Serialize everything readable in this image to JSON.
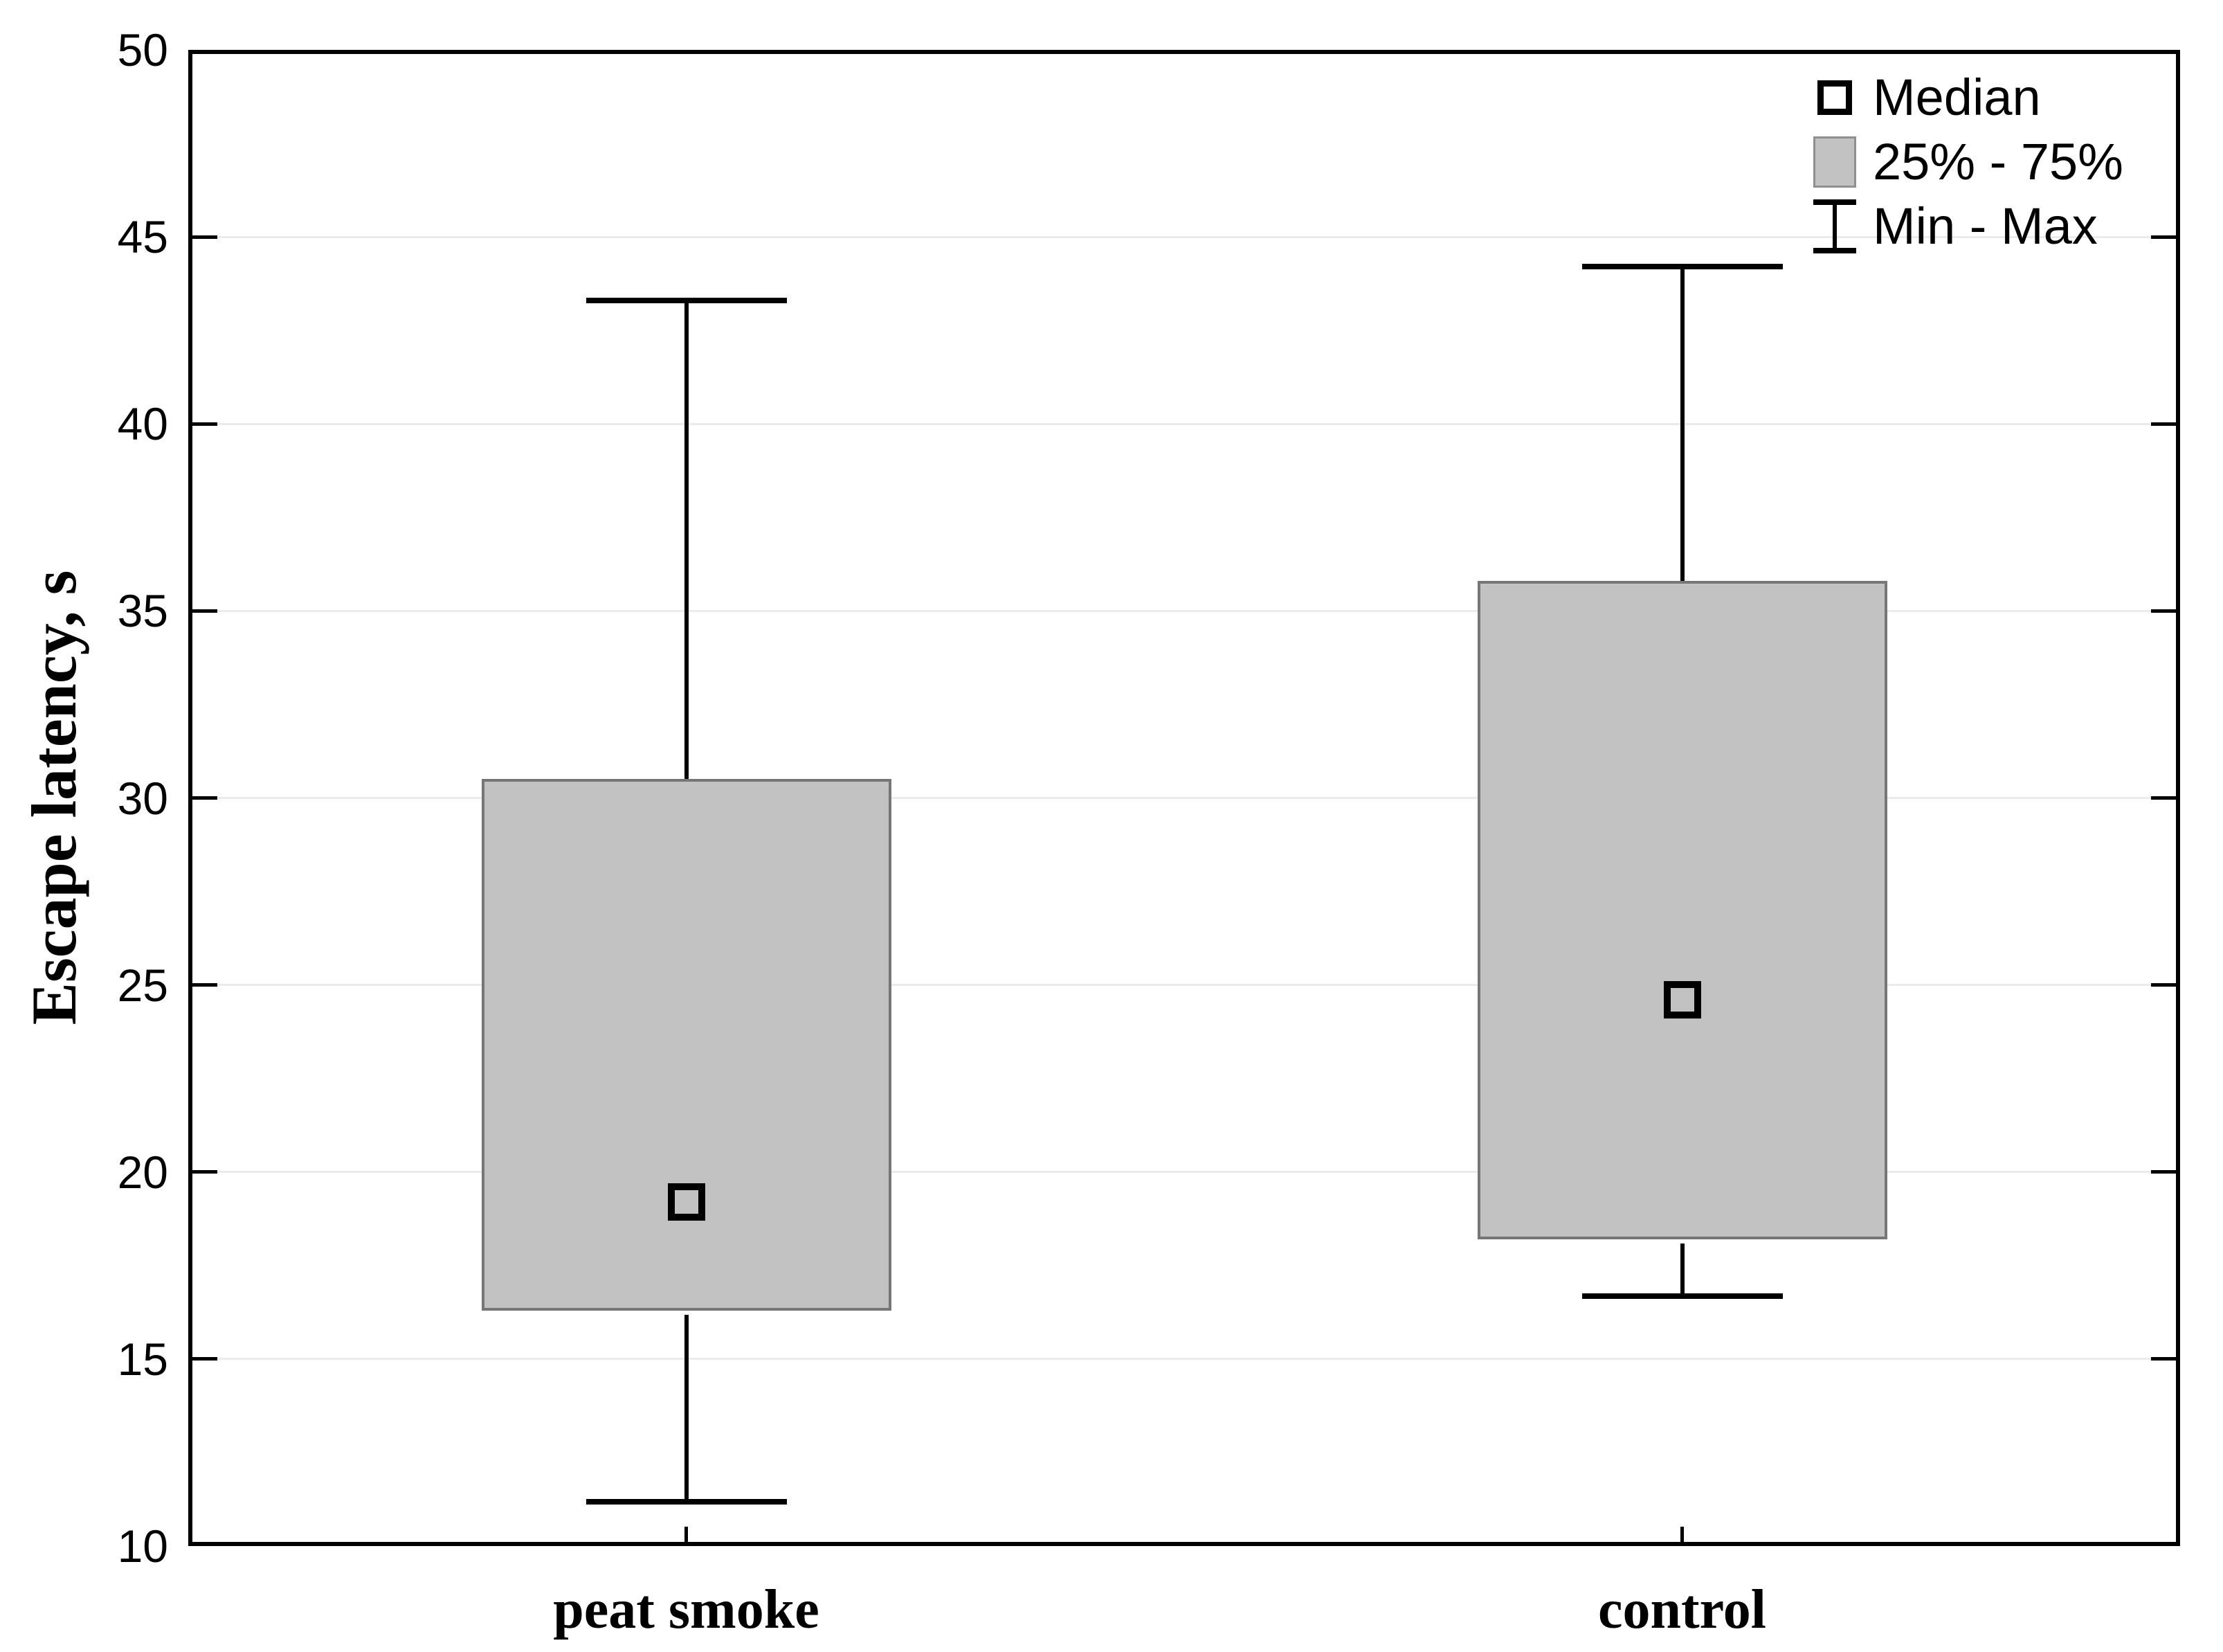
{
  "chart_data": {
    "type": "box",
    "title": "",
    "ylabel": "Escape latency, s",
    "xlabel": "",
    "ylim": [
      10,
      50
    ],
    "yticks": [
      50,
      45,
      40,
      35,
      30,
      25,
      20,
      15,
      10
    ],
    "grid": "horizontal-light",
    "legend_position": "top-right-inside",
    "categories": [
      "peat smoke",
      "control"
    ],
    "series": [
      {
        "name": "peat smoke",
        "min": 11.3,
        "q1": 16.3,
        "median": 19.2,
        "q3": 30.5,
        "max": 43.3
      },
      {
        "name": "control",
        "min": 16.8,
        "q1": 18.2,
        "median": 24.6,
        "q3": 35.8,
        "max": 44.2
      }
    ],
    "legend": [
      {
        "icon": "median-square-icon",
        "label": "Median"
      },
      {
        "icon": "iqr-box-icon",
        "label": "25% - 75%"
      },
      {
        "icon": "min-max-whisker-icon",
        "label": "Min - Max"
      }
    ],
    "colors": {
      "box_fill": "#c2c2c2",
      "box_border": "#767676",
      "median_marker": "#000000",
      "whisker": "#000000",
      "frame": "#000000",
      "gridline": "#ebebeb",
      "background": "#ffffff"
    }
  }
}
